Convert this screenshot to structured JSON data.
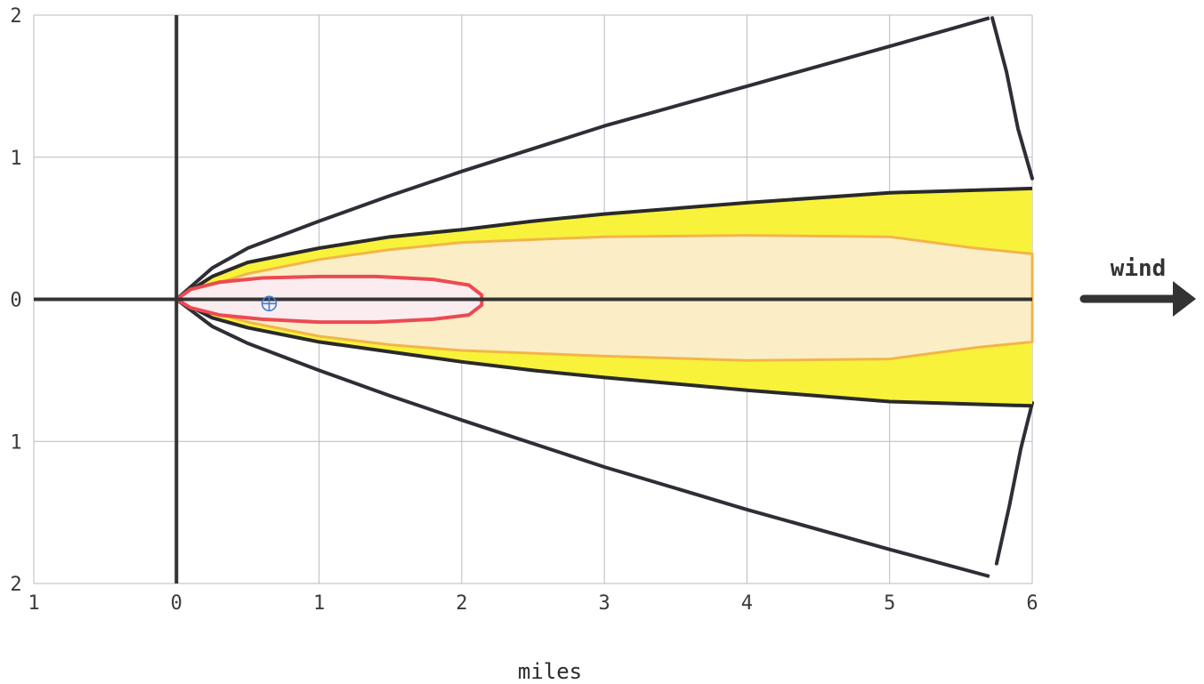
{
  "chart_data": {
    "type": "area",
    "xlabel": "miles",
    "xlim": [
      -1,
      6
    ],
    "ylim": [
      -2,
      2
    ],
    "x_ticks": [
      "1",
      "0",
      "1",
      "2",
      "3",
      "4",
      "5",
      "6"
    ],
    "y_ticks": [
      "2",
      "1",
      "0",
      "1",
      "2"
    ],
    "grid": true,
    "annotation": "wind",
    "colors": {
      "outer": "#2e2e36",
      "yellow": "#f8f23a",
      "yellow_edge": "#2a2a2a",
      "orange": "#f2b54a",
      "orange_fill": "#fbeec6",
      "red": "#ec4a52",
      "red_fill": "#fbecef",
      "marker": "#3d7fd6"
    },
    "series": [
      {
        "name": "",
        "region": "outer",
        "x": [
          0,
          0.25,
          0.5,
          1,
          1.5,
          2,
          3,
          4,
          5,
          5.7
        ],
        "upper": [
          0,
          0.22,
          0.36,
          0.55,
          0.73,
          0.9,
          1.22,
          1.5,
          1.78,
          1.98
        ],
        "lower": [
          0,
          -0.19,
          -0.31,
          -0.5,
          -0.68,
          -0.85,
          -1.18,
          -1.48,
          -1.76,
          -1.95
        ]
      },
      {
        "name": "",
        "region": "yellow",
        "x": [
          0,
          0.25,
          0.5,
          1,
          1.5,
          2,
          2.5,
          3,
          4,
          5,
          6
        ],
        "upper": [
          0,
          0.16,
          0.26,
          0.36,
          0.44,
          0.49,
          0.55,
          0.6,
          0.68,
          0.75,
          0.78
        ],
        "lower": [
          0,
          -0.13,
          -0.2,
          -0.3,
          -0.37,
          -0.44,
          -0.5,
          -0.55,
          -0.64,
          -0.72,
          -0.75
        ]
      },
      {
        "name": "",
        "region": "orange",
        "x": [
          0,
          0.25,
          0.5,
          1,
          1.5,
          2,
          3,
          4,
          5,
          5.6,
          6
        ],
        "upper": [
          0,
          0.1,
          0.18,
          0.28,
          0.35,
          0.4,
          0.44,
          0.45,
          0.44,
          0.36,
          0.32
        ],
        "lower": [
          0,
          -0.09,
          -0.16,
          -0.26,
          -0.32,
          -0.36,
          -0.4,
          -0.43,
          -0.42,
          -0.34,
          -0.3
        ]
      },
      {
        "name": "",
        "region": "red",
        "x": [
          0,
          0.1,
          0.3,
          0.6,
          1,
          1.4,
          1.8,
          2.05,
          2.14
        ],
        "upper": [
          0,
          0.07,
          0.12,
          0.15,
          0.16,
          0.16,
          0.14,
          0.1,
          0.03
        ],
        "lower": [
          0,
          -0.06,
          -0.11,
          -0.14,
          -0.16,
          -0.16,
          -0.14,
          -0.11,
          -0.04
        ]
      }
    ],
    "outer_arc": {
      "upper": [
        [
          5.72,
          1.98
        ],
        [
          5.82,
          1.6
        ],
        [
          5.9,
          1.2
        ],
        [
          6,
          0.85
        ]
      ],
      "lower": [
        [
          6,
          -0.73
        ],
        [
          5.92,
          -1.05
        ],
        [
          5.84,
          -1.45
        ],
        [
          5.75,
          -1.86
        ]
      ]
    },
    "marker": {
      "x": 0.65,
      "y": -0.03
    }
  }
}
